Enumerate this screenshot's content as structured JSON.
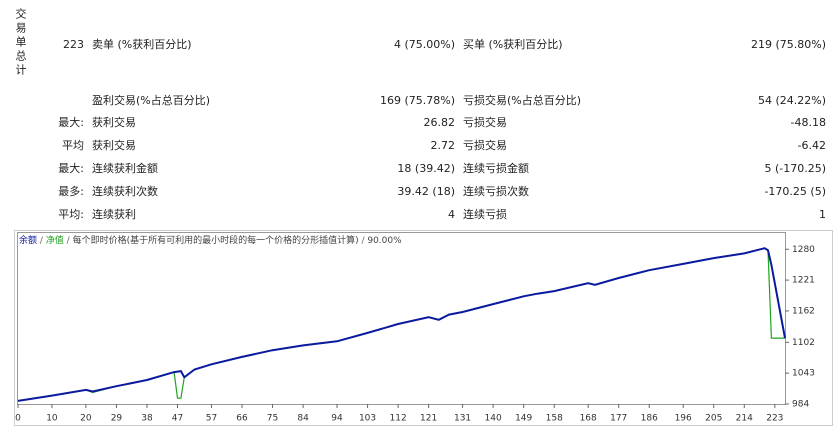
{
  "report": {
    "side_header": "交易单总计",
    "rows": [
      {
        "prefix": "223",
        "cells": [
          "卖单 (%获利百分比)",
          "4 (75.00%)",
          "买单 (%获利百分比)",
          "219 (75.80%)"
        ]
      },
      {
        "cells": [
          "盈利交易(%占总百分比)",
          "169 (75.78%)",
          "亏损交易(%占总百分比)",
          "54 (24.22%)"
        ]
      },
      {
        "prefix": "最大:",
        "cells": [
          "获利交易",
          "26.82",
          "亏损交易",
          "-48.18"
        ]
      },
      {
        "prefix": "平均",
        "cells": [
          "获利交易",
          "2.72",
          "亏损交易",
          "-6.42"
        ]
      },
      {
        "prefix": "最大:",
        "cells": [
          "连续获利金额",
          "18 (39.42)",
          "连续亏损金额",
          "5 (-170.25)"
        ]
      },
      {
        "prefix": "最多:",
        "cells": [
          "连续获利次数",
          "39.42 (18)",
          "连续亏损次数",
          "-170.25 (5)"
        ]
      },
      {
        "prefix": "平均:",
        "cells": [
          "连续获利",
          "4",
          "连续亏损",
          "1"
        ]
      }
    ]
  },
  "chart_data": {
    "type": "line",
    "subtitle": "每个即时价格(基于所有可利用的最小时段的每一个价格的分形插值计算)",
    "quality": "90.00%",
    "x": [
      0,
      10,
      20,
      22,
      29,
      38,
      46,
      47,
      48,
      49,
      52,
      57,
      66,
      75,
      84,
      94,
      103,
      112,
      121,
      124,
      127,
      131,
      140,
      149,
      153,
      158,
      168,
      170,
      177,
      186,
      196,
      205,
      214,
      220,
      221,
      222,
      226
    ],
    "series": [
      {
        "name": "余额",
        "color": "#0a1a9e",
        "values": [
          990,
          1000,
          1011,
          1008,
          1018,
          1030,
          1045,
          1046,
          1047,
          1035,
          1050,
          1060,
          1074,
          1087,
          1096,
          1104,
          1120,
          1137,
          1150,
          1145,
          1155,
          1160,
          1175,
          1190,
          1195,
          1200,
          1215,
          1212,
          1225,
          1240,
          1252,
          1263,
          1272,
          1282,
          1278,
          1250,
          1110
        ]
      },
      {
        "name": "净值",
        "color": "#1fa31f",
        "values": [
          990,
          1000,
          1011,
          1006,
          1018,
          1030,
          1045,
          995,
          995,
          1035,
          1050,
          1060,
          1074,
          1087,
          1096,
          1104,
          1120,
          1137,
          1150,
          1145,
          1155,
          1160,
          1175,
          1190,
          1195,
          1200,
          1215,
          1212,
          1225,
          1240,
          1252,
          1263,
          1272,
          1282,
          1278,
          1110,
          1110
        ]
      }
    ],
    "xlim": [
      0,
      226
    ],
    "ylim": [
      984,
      1313
    ],
    "xticks": [
      0,
      10,
      20,
      29,
      38,
      47,
      57,
      66,
      75,
      84,
      94,
      103,
      112,
      121,
      131,
      140,
      149,
      158,
      168,
      177,
      186,
      196,
      205,
      214,
      223
    ],
    "yticks": [
      984,
      1043,
      1102,
      1162,
      1221,
      1280
    ],
    "grid": false
  }
}
